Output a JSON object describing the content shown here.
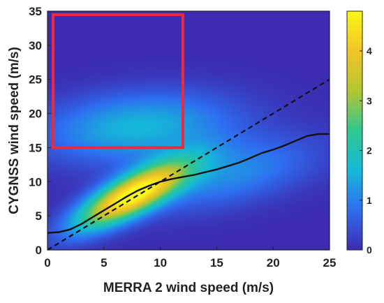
{
  "chart_data": {
    "type": "heatmap",
    "title": "",
    "xlabel": "MERRA 2 wind speed (m/s)",
    "ylabel": "CYGNSS wind speed (m/s)",
    "xlim": [
      0,
      25
    ],
    "ylim": [
      0,
      35
    ],
    "xticks": [
      "0",
      "5",
      "10",
      "15",
      "20",
      "25"
    ],
    "yticks": [
      "0",
      "5",
      "10",
      "15",
      "20",
      "25",
      "30",
      "35"
    ],
    "grid": false,
    "colorbar": {
      "range": [
        0,
        4.8
      ],
      "ticks": [
        "0",
        "1",
        "2",
        "3",
        "4"
      ],
      "colors": [
        "#3c2bb0",
        "#2e6ef0",
        "#15b8d8",
        "#30c890",
        "#b4c530",
        "#f4c428",
        "#f8f816"
      ]
    },
    "density_components": [
      {
        "center_x": 7.5,
        "center_y": 8.0,
        "spread_major": 4.5,
        "spread_minor": 1.6,
        "angle_deg": 45,
        "peak": 4.8
      },
      {
        "center_x": 8.0,
        "center_y": 18.0,
        "spread_major": 6.0,
        "spread_minor": 3.5,
        "angle_deg": 10,
        "peak": 1.6
      },
      {
        "center_x": 16.0,
        "center_y": 11.0,
        "spread_major": 6.0,
        "spread_minor": 3.0,
        "angle_deg": 25,
        "peak": 1.1
      }
    ],
    "mean_curve": {
      "x": [
        0,
        1,
        2,
        3,
        4,
        5,
        6,
        7,
        8,
        9,
        10,
        11,
        12,
        13,
        14,
        15,
        16,
        17,
        18,
        19,
        20,
        21,
        22,
        23,
        24,
        25
      ],
      "y": [
        2.5,
        2.6,
        3.0,
        3.8,
        4.8,
        5.8,
        6.8,
        7.8,
        8.7,
        9.4,
        10.0,
        10.4,
        10.7,
        11.0,
        11.4,
        11.8,
        12.3,
        12.8,
        13.5,
        14.2,
        14.7,
        15.3,
        16.0,
        16.7,
        17.0,
        17.0
      ]
    },
    "reference_line": {
      "x": [
        0,
        25
      ],
      "y": [
        0,
        25
      ],
      "style": "dashed"
    },
    "highlight_box": {
      "x0": 0.5,
      "x1": 12,
      "y0": 15,
      "y1": 34.5,
      "color": "#f0283c"
    }
  }
}
